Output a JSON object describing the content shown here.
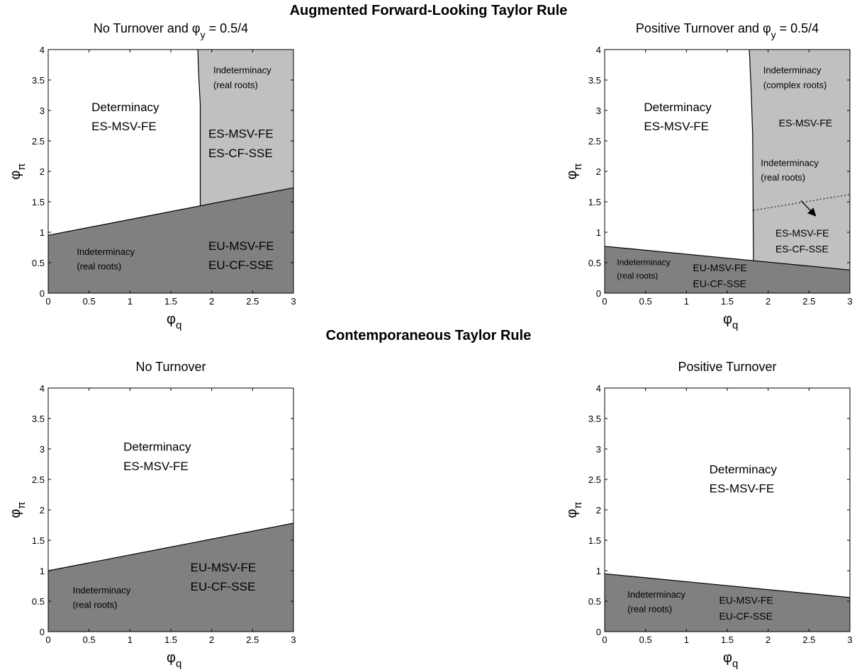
{
  "section_titles": [
    "Augmented Forward-Looking Taylor Rule",
    "Contemporaneous Taylor Rule"
  ],
  "colors": {
    "dark": "#808080",
    "light": "#c0c0c0",
    "white": "#ffffff",
    "axis": "#000000"
  },
  "chart_data": [
    {
      "type": "area",
      "title": "No Turnover and φy = 0.5/4",
      "title_parts": [
        "No Turnover and ",
        "φ",
        "y",
        " = 0.5/4"
      ],
      "xlabel": "φq",
      "ylabel": "φπ",
      "xlim": [
        0,
        3
      ],
      "ylim": [
        0,
        4
      ],
      "xticks": [
        "0",
        "0.5",
        "1",
        "1.5",
        "2",
        "2.5",
        "3"
      ],
      "yticks": [
        "0",
        "0.5",
        "1",
        "1.5",
        "2",
        "2.5",
        "3",
        "3.5",
        "4"
      ],
      "regions": [
        {
          "name": "dark",
          "color": "#808080",
          "points": [
            [
              0,
              0
            ],
            [
              3,
              0
            ],
            [
              3,
              1.73
            ],
            [
              0,
              0.95
            ]
          ]
        },
        {
          "name": "light",
          "color": "#c0c0c0",
          "points": [
            [
              1.83,
              4
            ],
            [
              3,
              4
            ],
            [
              3,
              1.73
            ],
            [
              1.86,
              1.44
            ],
            [
              1.86,
              3.1
            ],
            [
              1.84,
              3.6
            ]
          ]
        }
      ],
      "lines": [
        {
          "points": [
            [
              0,
              0.95
            ],
            [
              3,
              1.73
            ]
          ],
          "dash": "none"
        },
        {
          "points": [
            [
              1.83,
              4
            ],
            [
              1.84,
              3.6
            ],
            [
              1.86,
              3.1
            ],
            [
              1.86,
              1.44
            ]
          ],
          "dash": "none"
        }
      ],
      "arrows": [],
      "annotations": [
        {
          "x": 0.53,
          "y": 2.99,
          "lines": [
            "Determinacy",
            "ES-MSV-FE"
          ],
          "size": 17
        },
        {
          "x": 2.02,
          "y": 3.61,
          "lines": [
            "Indeterminacy",
            "(real roots)"
          ],
          "size": 13
        },
        {
          "x": 1.96,
          "y": 2.55,
          "lines": [
            "ES-MSV-FE",
            "ES-CF-SSE"
          ],
          "size": 17
        },
        {
          "x": 0.35,
          "y": 0.63,
          "lines": [
            "Indeterminacy",
            "(real roots)"
          ],
          "size": 13
        },
        {
          "x": 1.96,
          "y": 0.71,
          "lines": [
            "EU-MSV-FE",
            "EU-CF-SSE"
          ],
          "size": 17
        }
      ]
    },
    {
      "type": "area",
      "title": "Positive Turnover and φy = 0.5/4",
      "title_parts": [
        "Positive Turnover and ",
        "φ",
        "y",
        " = 0.5/4"
      ],
      "xlabel": "φq",
      "ylabel": "φπ",
      "xlim": [
        0,
        3
      ],
      "ylim": [
        0,
        4
      ],
      "xticks": [
        "0",
        "0.5",
        "1",
        "1.5",
        "2",
        "2.5",
        "3"
      ],
      "yticks": [
        "0",
        "0.5",
        "1",
        "1.5",
        "2",
        "2.5",
        "3",
        "3.5",
        "4"
      ],
      "regions": [
        {
          "name": "dark",
          "color": "#808080",
          "points": [
            [
              0,
              0
            ],
            [
              3,
              0
            ],
            [
              3,
              0.38
            ],
            [
              0,
              0.77
            ]
          ]
        },
        {
          "name": "light",
          "color": "#c0c0c0",
          "points": [
            [
              1.77,
              4
            ],
            [
              3,
              4
            ],
            [
              3,
              0.38
            ],
            [
              1.82,
              0.54
            ],
            [
              1.81,
              2.6
            ],
            [
              1.79,
              3.4
            ]
          ]
        }
      ],
      "lines": [
        {
          "points": [
            [
              0,
              0.77
            ],
            [
              3,
              0.38
            ]
          ],
          "dash": "none"
        },
        {
          "points": [
            [
              1.77,
              4
            ],
            [
              1.79,
              3.4
            ],
            [
              1.81,
              2.6
            ],
            [
              1.82,
              0.54
            ]
          ],
          "dash": "none"
        },
        {
          "points": [
            [
              1.82,
              1.36
            ],
            [
              3,
              1.62
            ]
          ],
          "dash": "2,3"
        }
      ],
      "arrows": [
        {
          "from": [
            2.4,
            1.52
          ],
          "to": [
            2.58,
            1.27
          ]
        }
      ],
      "annotations": [
        {
          "x": 0.48,
          "y": 2.99,
          "lines": [
            "Determinacy",
            "ES-MSV-FE"
          ],
          "size": 17
        },
        {
          "x": 1.94,
          "y": 3.61,
          "lines": [
            "Indeterminacy",
            "(complex roots)"
          ],
          "size": 13
        },
        {
          "x": 2.13,
          "y": 2.74,
          "lines": [
            "ES-MSV-FE"
          ],
          "size": 14
        },
        {
          "x": 1.91,
          "y": 2.09,
          "lines": [
            "Indeterminacy",
            "(real roots)"
          ],
          "size": 13
        },
        {
          "x": 2.09,
          "y": 0.93,
          "lines": [
            "ES-MSV-FE",
            "ES-CF-SSE"
          ],
          "size": 14
        },
        {
          "x": 0.15,
          "y": 0.46,
          "lines": [
            "Indeterminacy",
            "(real roots)"
          ],
          "size": 12
        },
        {
          "x": 1.08,
          "y": 0.36,
          "lines": [
            "EU-MSV-FE",
            "EU-CF-SSE"
          ],
          "size": 14
        }
      ]
    },
    {
      "type": "area",
      "title": "No Turnover",
      "title_parts": [
        "No Turnover"
      ],
      "xlabel": "φq",
      "ylabel": "φπ",
      "xlim": [
        0,
        3
      ],
      "ylim": [
        0,
        4
      ],
      "xticks": [
        "0",
        "0.5",
        "1",
        "1.5",
        "2",
        "2.5",
        "3"
      ],
      "yticks": [
        "0",
        "0.5",
        "1",
        "1.5",
        "2",
        "2.5",
        "3",
        "3.5",
        "4"
      ],
      "regions": [
        {
          "name": "dark",
          "color": "#808080",
          "points": [
            [
              0,
              0
            ],
            [
              3,
              0
            ],
            [
              3,
              1.78
            ],
            [
              0,
              1.0
            ]
          ]
        }
      ],
      "lines": [
        {
          "points": [
            [
              0,
              1.0
            ],
            [
              3,
              1.78
            ]
          ],
          "dash": "none"
        }
      ],
      "arrows": [],
      "annotations": [
        {
          "x": 0.92,
          "y": 2.97,
          "lines": [
            "Determinacy",
            "ES-MSV-FE"
          ],
          "size": 17
        },
        {
          "x": 1.74,
          "y": 0.99,
          "lines": [
            "EU-MSV-FE",
            "EU-CF-SSE"
          ],
          "size": 17
        },
        {
          "x": 0.3,
          "y": 0.63,
          "lines": [
            "Indeterminacy",
            "(real roots)"
          ],
          "size": 13
        }
      ]
    },
    {
      "type": "area",
      "title": "Positive Turnover",
      "title_parts": [
        "Positive Turnover"
      ],
      "xlabel": "φq",
      "ylabel": "φπ",
      "xlim": [
        0,
        3
      ],
      "ylim": [
        0,
        4
      ],
      "xticks": [
        "0",
        "0.5",
        "1",
        "1.5",
        "2",
        "2.5",
        "3"
      ],
      "yticks": [
        "0",
        "0.5",
        "1",
        "1.5",
        "2",
        "2.5",
        "3",
        "3.5",
        "4"
      ],
      "regions": [
        {
          "name": "dark",
          "color": "#808080",
          "points": [
            [
              0,
              0
            ],
            [
              3,
              0
            ],
            [
              3,
              0.56
            ],
            [
              0,
              0.95
            ]
          ]
        }
      ],
      "lines": [
        {
          "points": [
            [
              0,
              0.95
            ],
            [
              3,
              0.56
            ]
          ],
          "dash": "none"
        }
      ],
      "arrows": [],
      "annotations": [
        {
          "x": 1.28,
          "y": 2.6,
          "lines": [
            "Determinacy",
            "ES-MSV-FE"
          ],
          "size": 17
        },
        {
          "x": 0.28,
          "y": 0.56,
          "lines": [
            "Indeterminacy",
            "(real roots)"
          ],
          "size": 13
        },
        {
          "x": 1.4,
          "y": 0.46,
          "lines": [
            "EU-MSV-FE",
            "EU-CF-SSE"
          ],
          "size": 14
        }
      ]
    }
  ]
}
